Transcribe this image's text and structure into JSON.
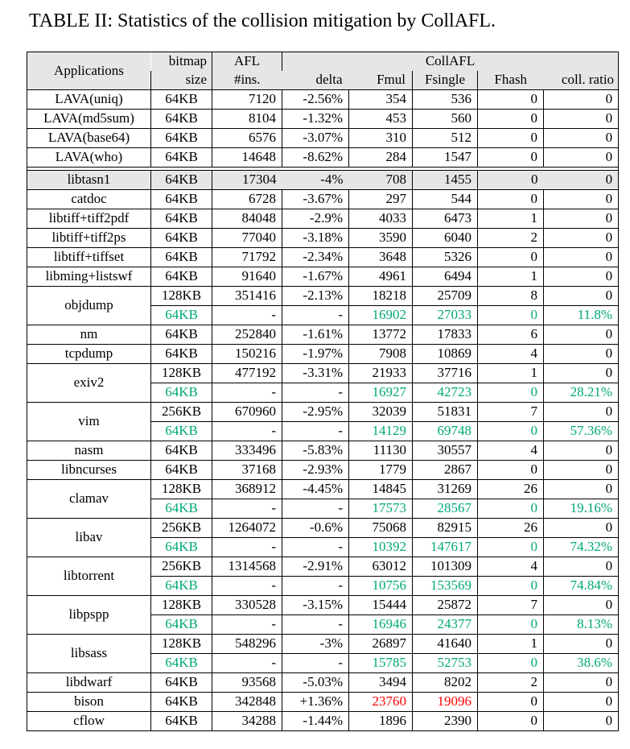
{
  "title": "TABLE II: Statistics of the collision mitigation by CollAFL.",
  "colors": {
    "green": "#00a878",
    "red": "#ff0000",
    "shade": "#e6e6e6"
  },
  "header": {
    "applications": "Applications",
    "bitmap": "bitmap",
    "size": "size",
    "afl": "AFL",
    "ins": "#ins.",
    "collafl": "CollAFL",
    "delta": "delta",
    "fmul": "Fmul",
    "fsingle": "Fsingle",
    "fhash": "Fhash",
    "ratio": "coll. ratio"
  },
  "table": {
    "rows": [
      {
        "app": "LAVA(uniq)",
        "span": 1,
        "cells": [
          "64KB",
          "7120",
          "-2.56%",
          "354",
          "536",
          "0",
          "0"
        ]
      },
      {
        "app": "LAVA(md5sum)",
        "span": 1,
        "cells": [
          "64KB",
          "8104",
          "-1.32%",
          "453",
          "560",
          "0",
          "0"
        ]
      },
      {
        "app": "LAVA(base64)",
        "span": 1,
        "cells": [
          "64KB",
          "6576",
          "-3.07%",
          "310",
          "512",
          "0",
          "0"
        ]
      },
      {
        "app": "LAVA(who)",
        "span": 1,
        "cells": [
          "64KB",
          "14648",
          "-8.62%",
          "284",
          "1547",
          "0",
          "0"
        ]
      },
      {
        "gap": true
      },
      {
        "app": "libtasn1",
        "span": 1,
        "shaded": true,
        "noleft": [
          2,
          3,
          6
        ],
        "cells": [
          "64KB",
          "17304",
          "-4%",
          "708",
          "1455",
          "0",
          "0"
        ]
      },
      {
        "app": "catdoc",
        "span": 1,
        "cells": [
          "64KB",
          "6728",
          "-3.67%",
          "297",
          "544",
          "0",
          "0"
        ]
      },
      {
        "app": "libtiff+tiff2pdf",
        "span": 1,
        "cells": [
          "64KB",
          "84048",
          "-2.9%",
          "4033",
          "6473",
          "1",
          "0"
        ]
      },
      {
        "app": "libtiff+tiff2ps",
        "span": 1,
        "cells": [
          "64KB",
          "77040",
          "-3.18%",
          "3590",
          "6040",
          "2",
          "0"
        ]
      },
      {
        "app": "libtiff+tiffset",
        "span": 1,
        "cells": [
          "64KB",
          "71792",
          "-2.34%",
          "3648",
          "5326",
          "0",
          "0"
        ]
      },
      {
        "app": "libming+listswf",
        "span": 1,
        "cells": [
          "64KB",
          "91640",
          "-1.67%",
          "4961",
          "6494",
          "1",
          "0"
        ]
      },
      {
        "app": "objdump",
        "span": 2,
        "cells": [
          "128KB",
          "351416",
          "-2.13%",
          "18218",
          "25709",
          "8",
          "0"
        ]
      },
      {
        "cells": [
          [
            "64KB",
            "g"
          ],
          "-",
          "-",
          [
            "16902",
            "g"
          ],
          [
            "27033",
            "g"
          ],
          [
            "0",
            "g"
          ],
          [
            "11.8%",
            "g"
          ]
        ]
      },
      {
        "app": "nm",
        "span": 1,
        "cells": [
          "64KB",
          "252840",
          "-1.61%",
          "13772",
          "17833",
          "6",
          "0"
        ]
      },
      {
        "app": "tcpdump",
        "span": 1,
        "cells": [
          "64KB",
          "150216",
          "-1.97%",
          "7908",
          "10869",
          "4",
          "0"
        ]
      },
      {
        "app": "exiv2",
        "span": 2,
        "cells": [
          "128KB",
          "477192",
          "-3.31%",
          "21933",
          "37716",
          "1",
          "0"
        ]
      },
      {
        "cells": [
          [
            "64KB",
            "g"
          ],
          "-",
          "-",
          [
            "16927",
            "g"
          ],
          [
            "42723",
            "g"
          ],
          [
            "0",
            "g"
          ],
          [
            "28.21%",
            "g"
          ]
        ]
      },
      {
        "app": "vim",
        "span": 2,
        "cells": [
          "256KB",
          "670960",
          "-2.95%",
          "32039",
          "51831",
          "7",
          "0"
        ]
      },
      {
        "cells": [
          [
            "64KB",
            "g"
          ],
          "-",
          "-",
          [
            "14129",
            "g"
          ],
          [
            "69748",
            "g"
          ],
          [
            "0",
            "g"
          ],
          [
            "57.36%",
            "g"
          ]
        ]
      },
      {
        "app": "nasm",
        "span": 1,
        "cells": [
          "64KB",
          "333496",
          "-5.83%",
          "11130",
          "30557",
          "4",
          "0"
        ]
      },
      {
        "app": "libncurses",
        "span": 1,
        "cells": [
          "64KB",
          "37168",
          "-2.93%",
          "1779",
          "2867",
          "0",
          "0"
        ]
      },
      {
        "app": "clamav",
        "span": 2,
        "cells": [
          "128KB",
          "368912",
          "-4.45%",
          "14845",
          "31269",
          "26",
          "0"
        ]
      },
      {
        "cells": [
          [
            "64KB",
            "g"
          ],
          "-",
          "-",
          [
            "17573",
            "g"
          ],
          [
            "28567",
            "g"
          ],
          [
            "0",
            "g"
          ],
          [
            "19.16%",
            "g"
          ]
        ]
      },
      {
        "app": "libav",
        "span": 2,
        "cells": [
          "256KB",
          "1264072",
          "-0.6%",
          "75068",
          "82915",
          "26",
          "0"
        ]
      },
      {
        "cells": [
          [
            "64KB",
            "g"
          ],
          "-",
          "-",
          [
            "10392",
            "g"
          ],
          [
            "147617",
            "g"
          ],
          [
            "0",
            "g"
          ],
          [
            "74.32%",
            "g"
          ]
        ]
      },
      {
        "app": "libtorrent",
        "span": 2,
        "cells": [
          "256KB",
          "1314568",
          "-2.91%",
          "63012",
          "101309",
          "4",
          "0"
        ]
      },
      {
        "cells": [
          [
            "64KB",
            "g"
          ],
          "-",
          "-",
          [
            "10756",
            "g"
          ],
          [
            "153569",
            "g"
          ],
          [
            "0",
            "g"
          ],
          [
            "74.84%",
            "g"
          ]
        ]
      },
      {
        "app": "libpspp",
        "span": 2,
        "cells": [
          "128KB",
          "330528",
          "-3.15%",
          "15444",
          "25872",
          "7",
          "0"
        ]
      },
      {
        "cells": [
          [
            "64KB",
            "g"
          ],
          "-",
          "-",
          [
            "16946",
            "g"
          ],
          [
            "24377",
            "g"
          ],
          [
            "0",
            "g"
          ],
          [
            "8.13%",
            "g"
          ]
        ]
      },
      {
        "app": "libsass",
        "span": 2,
        "cells": [
          "128KB",
          "548296",
          "-3%",
          "26897",
          "41640",
          "1",
          "0"
        ]
      },
      {
        "cells": [
          [
            "64KB",
            "g"
          ],
          "-",
          "-",
          [
            "15785",
            "g"
          ],
          [
            "52753",
            "g"
          ],
          [
            "0",
            "g"
          ],
          [
            "38.6%",
            "g"
          ]
        ]
      },
      {
        "app": "libdwarf",
        "span": 1,
        "cells": [
          "64KB",
          "93568",
          "-5.03%",
          "3494",
          "8202",
          "2",
          "0"
        ]
      },
      {
        "app": "bison",
        "span": 1,
        "cells": [
          "64KB",
          "342848",
          "+1.36%",
          [
            "23760",
            "r"
          ],
          [
            "19096",
            "r"
          ],
          "0",
          "0"
        ]
      },
      {
        "app": "cflow",
        "span": 1,
        "cells": [
          "64KB",
          "34288",
          "-1.44%",
          "1896",
          "2390",
          "0",
          "0"
        ]
      }
    ]
  }
}
